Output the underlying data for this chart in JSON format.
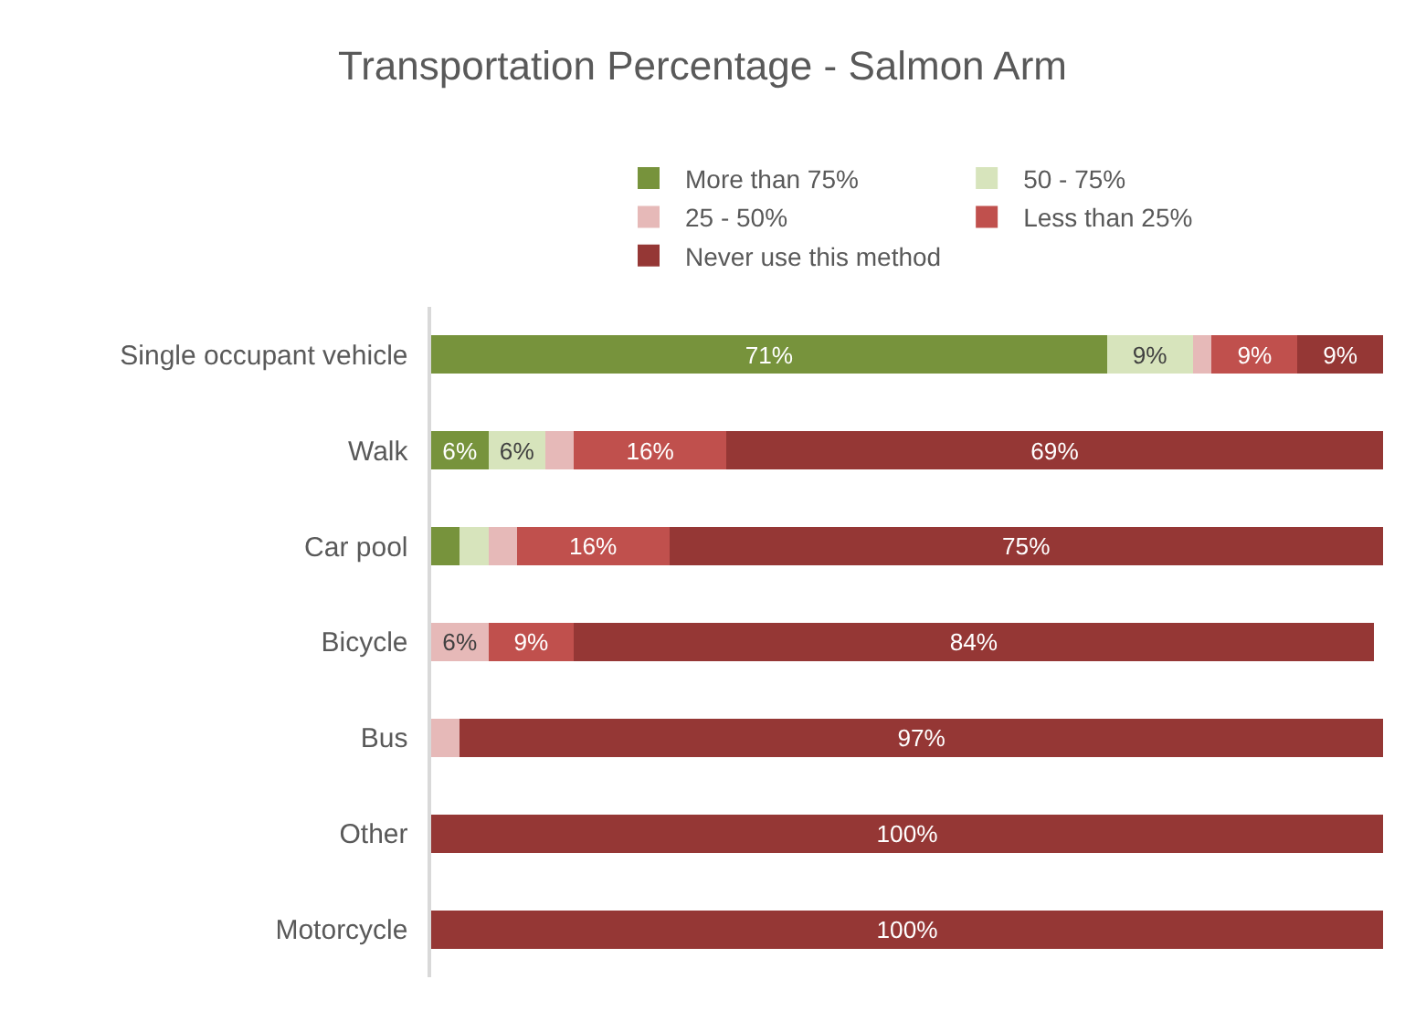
{
  "chart_data": {
    "type": "bar",
    "orientation": "horizontal",
    "stacked": true,
    "title": "Transportation Percentage - Salmon Arm",
    "categories": [
      "Single occupant vehicle",
      "Walk",
      "Car pool",
      "Bicycle",
      "Bus",
      "Other",
      "Motorcycle"
    ],
    "xlim": [
      0,
      100
    ],
    "tick_labels": "y",
    "legend": "top",
    "series": [
      {
        "name": "More than 75%",
        "color": "#77933c",
        "values": [
          71,
          6,
          3,
          0,
          0,
          0,
          0
        ],
        "value_labels": [
          "71%",
          "6%",
          null,
          null,
          null,
          null,
          null
        ]
      },
      {
        "name": "50 - 75%",
        "color": "#d7e4bc",
        "values": [
          9,
          6,
          3,
          0,
          0,
          0,
          0
        ],
        "value_labels": [
          "9%",
          "6%",
          null,
          null,
          null,
          null,
          null
        ]
      },
      {
        "name": "25 - 50%",
        "color": "#e6b9b8",
        "values": [
          2,
          3,
          3,
          6,
          3,
          0,
          0
        ],
        "value_labels": [
          null,
          null,
          null,
          "6%",
          null,
          null,
          null
        ]
      },
      {
        "name": "Less than 25%",
        "color": "#c0504d",
        "values": [
          9,
          16,
          16,
          9,
          0,
          0,
          0
        ],
        "value_labels": [
          "9%",
          "16%",
          "16%",
          "9%",
          null,
          null,
          null
        ]
      },
      {
        "name": "Never use this method",
        "color": "#953735",
        "values": [
          9,
          69,
          75,
          84,
          97,
          100,
          100
        ],
        "value_labels": [
          "9%",
          "69%",
          "75%",
          "84%",
          "97%",
          "100%",
          "100%"
        ]
      }
    ]
  }
}
